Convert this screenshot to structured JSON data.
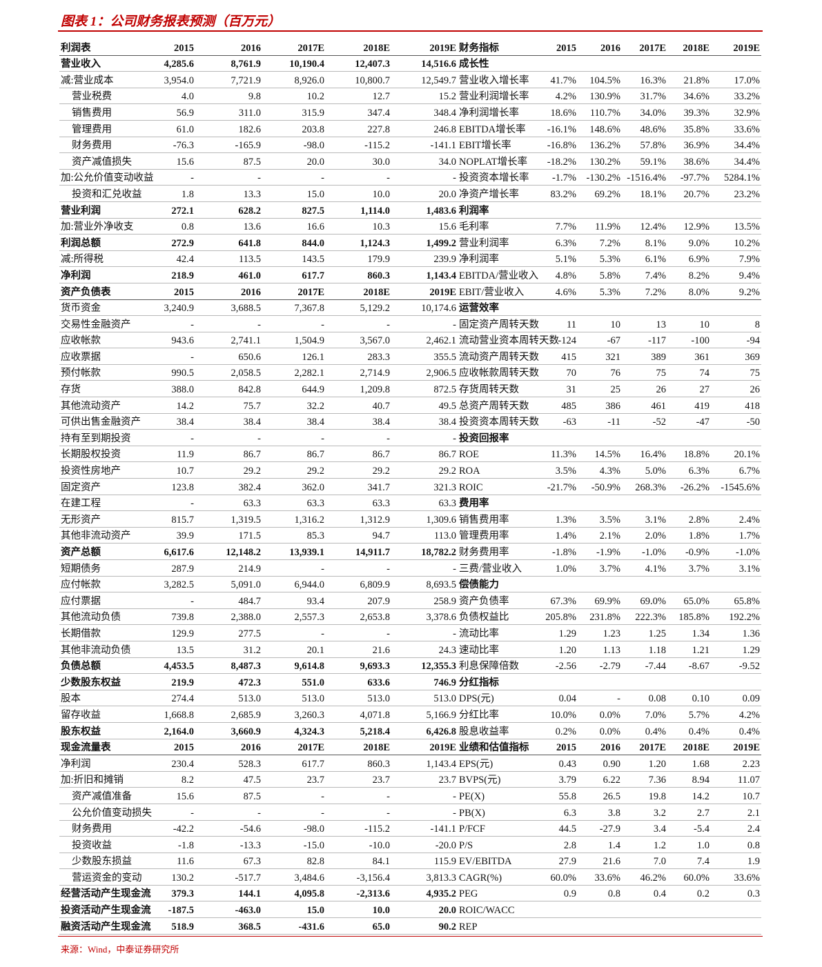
{
  "title": "图表 1：公司财务报表预测（百万元）",
  "source": "来源：Wind，中泰证券研究所",
  "table": {
    "rows": [
      {
        "left": [
          "利润表",
          "2015",
          "2016",
          "2017E",
          "2018E",
          "2019E"
        ],
        "right": [
          "财务指标",
          "2015",
          "2016",
          "2017E",
          "2018E",
          "2019E"
        ]
      },
      {
        "left": [
          "营业收入",
          "4,285.6",
          "8,761.9",
          "10,190.4",
          "12,407.3",
          "14,516.6"
        ],
        "right": [
          "成长性"
        ]
      },
      {
        "left": [
          "减:营业成本",
          "3,954.0",
          "7,721.9",
          "8,926.0",
          "10,800.7",
          "12,549.7"
        ],
        "right": [
          "营业收入增长率",
          "41.7%",
          "104.5%",
          "16.3%",
          "21.8%",
          "17.0%"
        ]
      },
      {
        "left": [
          "营业税费",
          "4.0",
          "9.8",
          "10.2",
          "12.7",
          "15.2"
        ],
        "right": [
          "营业利润增长率",
          "4.2%",
          "130.9%",
          "31.7%",
          "34.6%",
          "33.2%"
        ]
      },
      {
        "left": [
          "销售费用",
          "56.9",
          "311.0",
          "315.9",
          "347.4",
          "348.4"
        ],
        "right": [
          "净利润增长率",
          "18.6%",
          "110.7%",
          "34.0%",
          "39.3%",
          "32.9%"
        ]
      },
      {
        "left": [
          "管理费用",
          "61.0",
          "182.6",
          "203.8",
          "227.8",
          "246.8"
        ],
        "right": [
          "EBITDA增长率",
          "-16.1%",
          "148.6%",
          "48.6%",
          "35.8%",
          "33.6%"
        ]
      },
      {
        "left": [
          "财务费用",
          "-76.3",
          "-165.9",
          "-98.0",
          "-115.2",
          "-141.1"
        ],
        "right": [
          "EBIT增长率",
          "-16.8%",
          "136.2%",
          "57.8%",
          "36.9%",
          "34.4%"
        ]
      },
      {
        "left": [
          "资产减值损失",
          "15.6",
          "87.5",
          "20.0",
          "30.0",
          "34.0"
        ],
        "right": [
          "NOPLAT增长率",
          "-18.2%",
          "130.2%",
          "59.1%",
          "38.6%",
          "34.4%"
        ]
      },
      {
        "left": [
          "加:公允价值变动收益",
          "-",
          "-",
          "-",
          "-",
          "-"
        ],
        "right": [
          "投资资本增长率",
          "-1.7%",
          "-130.2%",
          "-1516.4%",
          "-97.7%",
          "5284.1%"
        ]
      },
      {
        "left": [
          "投资和汇兑收益",
          "1.8",
          "13.3",
          "15.0",
          "10.0",
          "20.0"
        ],
        "right": [
          "净资产增长率",
          "83.2%",
          "69.2%",
          "18.1%",
          "20.7%",
          "23.2%"
        ]
      },
      {
        "left": [
          "营业利润",
          "272.1",
          "628.2",
          "827.5",
          "1,114.0",
          "1,483.6"
        ],
        "right": [
          "利润率"
        ]
      },
      {
        "left": [
          "加:营业外净收支",
          "0.8",
          "13.6",
          "16.6",
          "10.3",
          "15.6"
        ],
        "right": [
          "毛利率",
          "7.7%",
          "11.9%",
          "12.4%",
          "12.9%",
          "13.5%"
        ]
      },
      {
        "left": [
          "利润总额",
          "272.9",
          "641.8",
          "844.0",
          "1,124.3",
          "1,499.2"
        ],
        "right": [
          "营业利润率",
          "6.3%",
          "7.2%",
          "8.1%",
          "9.0%",
          "10.2%"
        ]
      },
      {
        "left": [
          "减:所得税",
          "42.4",
          "113.5",
          "143.5",
          "179.9",
          "239.9"
        ],
        "right": [
          "净利润率",
          "5.1%",
          "5.3%",
          "6.1%",
          "6.9%",
          "7.9%"
        ]
      },
      {
        "left": [
          "净利润",
          "218.9",
          "461.0",
          "617.7",
          "860.3",
          "1,143.4"
        ],
        "right": [
          "EBITDA/营业收入",
          "4.8%",
          "5.8%",
          "7.4%",
          "8.2%",
          "9.4%"
        ]
      },
      {
        "left": [
          "资产负债表",
          "2015",
          "2016",
          "2017E",
          "2018E",
          "2019E"
        ],
        "right": [
          "EBIT/营业收入",
          "4.6%",
          "5.3%",
          "7.2%",
          "8.0%",
          "9.2%"
        ]
      },
      {
        "left": [
          "货币资金",
          "3,240.9",
          "3,688.5",
          "7,367.8",
          "5,129.2",
          "10,174.6"
        ],
        "right": [
          "运营效率"
        ]
      },
      {
        "left": [
          "交易性金融资产",
          "-",
          "-",
          "-",
          "-",
          "-"
        ],
        "right": [
          "固定资产周转天数",
          "11",
          "10",
          "13",
          "10",
          "8"
        ]
      },
      {
        "left": [
          "应收帐款",
          "943.6",
          "2,741.1",
          "1,504.9",
          "3,567.0",
          "2,462.1"
        ],
        "right": [
          "流动营业资本周转天数",
          "-124",
          "-67",
          "-117",
          "-100",
          "-94"
        ]
      },
      {
        "left": [
          "应收票据",
          "-",
          "650.6",
          "126.1",
          "283.3",
          "355.5"
        ],
        "right": [
          "流动资产周转天数",
          "415",
          "321",
          "389",
          "361",
          "369"
        ]
      },
      {
        "left": [
          "预付帐款",
          "990.5",
          "2,058.5",
          "2,282.1",
          "2,714.9",
          "2,906.5"
        ],
        "right": [
          "应收帐款周转天数",
          "70",
          "76",
          "75",
          "74",
          "75"
        ]
      },
      {
        "left": [
          "存货",
          "388.0",
          "842.8",
          "644.9",
          "1,209.8",
          "872.5"
        ],
        "right": [
          "存货周转天数",
          "31",
          "25",
          "26",
          "27",
          "26"
        ]
      },
      {
        "left": [
          "其他流动资产",
          "14.2",
          "75.7",
          "32.2",
          "40.7",
          "49.5"
        ],
        "right": [
          "总资产周转天数",
          "485",
          "386",
          "461",
          "419",
          "418"
        ]
      },
      {
        "left": [
          "可供出售金融资产",
          "38.4",
          "38.4",
          "38.4",
          "38.4",
          "38.4"
        ],
        "right": [
          "投资资本周转天数",
          "-63",
          "-11",
          "-52",
          "-47",
          "-50"
        ]
      },
      {
        "left": [
          "持有至到期投资",
          "-",
          "-",
          "-",
          "-",
          "-"
        ],
        "right": [
          "投资回报率"
        ]
      },
      {
        "left": [
          "长期股权投资",
          "11.9",
          "86.7",
          "86.7",
          "86.7",
          "86.7"
        ],
        "right": [
          "ROE",
          "11.3%",
          "14.5%",
          "16.4%",
          "18.8%",
          "20.1%"
        ]
      },
      {
        "left": [
          "投资性房地产",
          "10.7",
          "29.2",
          "29.2",
          "29.2",
          "29.2"
        ],
        "right": [
          "ROA",
          "3.5%",
          "4.3%",
          "5.0%",
          "6.3%",
          "6.7%"
        ]
      },
      {
        "left": [
          "固定资产",
          "123.8",
          "382.4",
          "362.0",
          "341.7",
          "321.3"
        ],
        "right": [
          "ROIC",
          "-21.7%",
          "-50.9%",
          "268.3%",
          "-26.2%",
          "-1545.6%"
        ]
      },
      {
        "left": [
          "在建工程",
          "-",
          "63.3",
          "63.3",
          "63.3",
          "63.3"
        ],
        "right": [
          "费用率"
        ]
      },
      {
        "left": [
          "无形资产",
          "815.7",
          "1,319.5",
          "1,316.2",
          "1,312.9",
          "1,309.6"
        ],
        "right": [
          "销售费用率",
          "1.3%",
          "3.5%",
          "3.1%",
          "2.8%",
          "2.4%"
        ]
      },
      {
        "left": [
          "其他非流动资产",
          "39.9",
          "171.5",
          "85.3",
          "94.7",
          "113.0"
        ],
        "right": [
          "管理费用率",
          "1.4%",
          "2.1%",
          "2.0%",
          "1.8%",
          "1.7%"
        ]
      },
      {
        "left": [
          "资产总额",
          "6,617.6",
          "12,148.2",
          "13,939.1",
          "14,911.7",
          "18,782.2"
        ],
        "right": [
          "财务费用率",
          "-1.8%",
          "-1.9%",
          "-1.0%",
          "-0.9%",
          "-1.0%"
        ]
      },
      {
        "left": [
          "短期债务",
          "287.9",
          "214.9",
          "-",
          "-",
          "-"
        ],
        "right": [
          "三费/营业收入",
          "1.0%",
          "3.7%",
          "4.1%",
          "3.7%",
          "3.1%"
        ]
      },
      {
        "left": [
          "应付帐款",
          "3,282.5",
          "5,091.0",
          "6,944.0",
          "6,809.9",
          "8,693.5"
        ],
        "right": [
          "偿债能力"
        ]
      },
      {
        "left": [
          "应付票据",
          "-",
          "484.7",
          "93.4",
          "207.9",
          "258.9"
        ],
        "right": [
          "资产负债率",
          "67.3%",
          "69.9%",
          "69.0%",
          "65.0%",
          "65.8%"
        ]
      },
      {
        "left": [
          "其他流动负债",
          "739.8",
          "2,388.0",
          "2,557.3",
          "2,653.8",
          "3,378.6"
        ],
        "right": [
          "负债权益比",
          "205.8%",
          "231.8%",
          "222.3%",
          "185.8%",
          "192.2%"
        ]
      },
      {
        "left": [
          "长期借款",
          "129.9",
          "277.5",
          "-",
          "-",
          "-"
        ],
        "right": [
          "流动比率",
          "1.29",
          "1.23",
          "1.25",
          "1.34",
          "1.36"
        ]
      },
      {
        "left": [
          "其他非流动负债",
          "13.5",
          "31.2",
          "20.1",
          "21.6",
          "24.3"
        ],
        "right": [
          "速动比率",
          "1.20",
          "1.13",
          "1.18",
          "1.21",
          "1.29"
        ]
      },
      {
        "left": [
          "负债总额",
          "4,453.5",
          "8,487.3",
          "9,614.8",
          "9,693.3",
          "12,355.3"
        ],
        "right": [
          "利息保障倍数",
          "-2.56",
          "-2.79",
          "-7.44",
          "-8.67",
          "-9.52"
        ]
      },
      {
        "left": [
          "少数股东权益",
          "219.9",
          "472.3",
          "551.0",
          "633.6",
          "746.9"
        ],
        "right": [
          "分红指标"
        ]
      },
      {
        "left": [
          "股本",
          "274.4",
          "513.0",
          "513.0",
          "513.0",
          "513.0"
        ],
        "right": [
          "DPS(元)",
          "0.04",
          "-",
          "0.08",
          "0.10",
          "0.09"
        ]
      },
      {
        "left": [
          "留存收益",
          "1,668.8",
          "2,685.9",
          "3,260.3",
          "4,071.8",
          "5,166.9"
        ],
        "right": [
          "分红比率",
          "10.0%",
          "0.0%",
          "7.0%",
          "5.7%",
          "4.2%"
        ]
      },
      {
        "left": [
          "股东权益",
          "2,164.0",
          "3,660.9",
          "4,324.3",
          "5,218.4",
          "6,426.8"
        ],
        "right": [
          "股息收益率",
          "0.2%",
          "0.0%",
          "0.4%",
          "0.4%",
          "0.4%"
        ]
      },
      {
        "left": [
          "现金流量表",
          "2015",
          "2016",
          "2017E",
          "2018E",
          "2019E"
        ],
        "right": [
          "业绩和估值指标",
          "2015",
          "2016",
          "2017E",
          "2018E",
          "2019E"
        ]
      },
      {
        "left": [
          "净利润",
          "230.4",
          "528.3",
          "617.7",
          "860.3",
          "1,143.4"
        ],
        "right": [
          "EPS(元)",
          "0.43",
          "0.90",
          "1.20",
          "1.68",
          "2.23"
        ]
      },
      {
        "left": [
          "加:折旧和摊销",
          "8.2",
          "47.5",
          "23.7",
          "23.7",
          "23.7"
        ],
        "right": [
          "BVPS(元)",
          "3.79",
          "6.22",
          "7.36",
          "8.94",
          "11.07"
        ]
      },
      {
        "left": [
          "资产减值准备",
          "15.6",
          "87.5",
          "-",
          "-",
          "-"
        ],
        "right": [
          "PE(X)",
          "55.8",
          "26.5",
          "19.8",
          "14.2",
          "10.7"
        ]
      },
      {
        "left": [
          "公允价值变动损失",
          "-",
          "-",
          "-",
          "-",
          "-"
        ],
        "right": [
          "PB(X)",
          "6.3",
          "3.8",
          "3.2",
          "2.7",
          "2.1"
        ]
      },
      {
        "left": [
          "财务费用",
          "-42.2",
          "-54.6",
          "-98.0",
          "-115.2",
          "-141.1"
        ],
        "right": [
          "P/FCF",
          "44.5",
          "-27.9",
          "3.4",
          "-5.4",
          "2.4"
        ]
      },
      {
        "left": [
          "投资收益",
          "-1.8",
          "-13.3",
          "-15.0",
          "-10.0",
          "-20.0"
        ],
        "right": [
          "P/S",
          "2.8",
          "1.4",
          "1.2",
          "1.0",
          "0.8"
        ]
      },
      {
        "left": [
          "少数股东损益",
          "11.6",
          "67.3",
          "82.8",
          "84.1",
          "115.9"
        ],
        "right": [
          "EV/EBITDA",
          "27.9",
          "21.6",
          "7.0",
          "7.4",
          "1.9"
        ]
      },
      {
        "left": [
          "营运资金的变动",
          "130.2",
          "-517.7",
          "3,484.6",
          "-3,156.4",
          "3,813.3"
        ],
        "right": [
          "CAGR(%)",
          "60.0%",
          "33.6%",
          "46.2%",
          "60.0%",
          "33.6%"
        ]
      },
      {
        "left": [
          "经营活动产生现金流",
          "379.3",
          "144.1",
          "4,095.8",
          "-2,313.6",
          "4,935.2"
        ],
        "right": [
          "PEG",
          "0.9",
          "0.8",
          "0.4",
          "0.2",
          "0.3"
        ]
      },
      {
        "left": [
          "投资活动产生现金流",
          "-187.5",
          "-463.0",
          "15.0",
          "10.0",
          "20.0"
        ],
        "right": [
          "ROIC/WACC"
        ]
      },
      {
        "left": [
          "融资活动产生现金流",
          "518.9",
          "368.5",
          "-431.6",
          "65.0",
          "90.2"
        ],
        "right": [
          "REP"
        ]
      }
    ]
  }
}
